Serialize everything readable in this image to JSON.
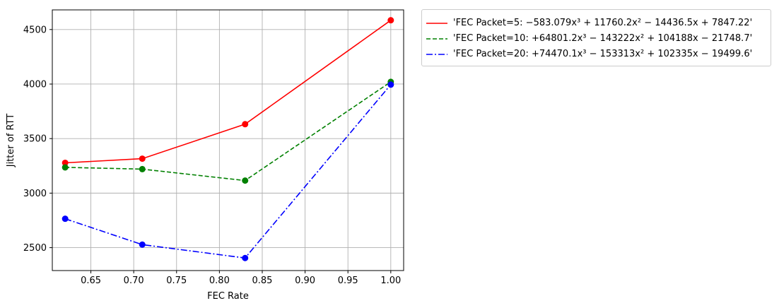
{
  "chart_data": {
    "type": "line",
    "xlabel": "FEC Rate",
    "ylabel": "Jitter of RTT",
    "xlim": [
      0.605,
      1.015
    ],
    "ylim": [
      2290,
      4680
    ],
    "x_ticks": [
      0.65,
      0.7,
      0.75,
      0.8,
      0.85,
      0.9,
      0.95,
      1.0
    ],
    "x_tick_labels": [
      "0.65",
      "0.70",
      "0.75",
      "0.80",
      "0.85",
      "0.90",
      "0.95",
      "1.00"
    ],
    "y_ticks": [
      2500,
      3000,
      3500,
      4000,
      4500
    ],
    "y_tick_labels": [
      "2500",
      "3000",
      "3500",
      "4000",
      "4500"
    ],
    "grid": true,
    "legend_position": "outside-top-right",
    "x": [
      0.62,
      0.71,
      0.83,
      1.0
    ],
    "series": [
      {
        "name": "'FEC Packet=5: −583.079x³ + 11760.2x² − 14436.5x + 7847.22'",
        "values": [
          3278,
          3316,
          3632,
          4585
        ],
        "color": "#ff0000",
        "line_style": "solid"
      },
      {
        "name": "'FEC Packet=10: +64801.2x³ − 143222x² + 104188x − 21748.7'",
        "values": [
          3236,
          3220,
          3115,
          4020
        ],
        "color": "#008000",
        "line_style": "dashed"
      },
      {
        "name": "'FEC Packet=20: +74470.1x³ − 153313x² + 102335x − 19499.6'",
        "values": [
          2765,
          2528,
          2405,
          3995
        ],
        "color": "#0000ff",
        "line_style": "dashdot"
      }
    ]
  }
}
